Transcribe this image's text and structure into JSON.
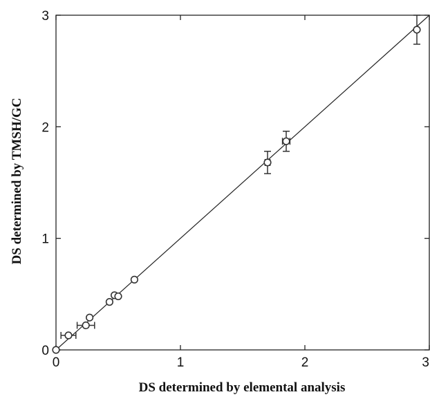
{
  "chart_data": {
    "type": "scatter",
    "title": "",
    "xlabel": "DS determined by elemental analysis",
    "ylabel": "DS determined by TMSH/GC",
    "xlim": [
      0,
      3
    ],
    "ylim": [
      0,
      3
    ],
    "x_ticks": [
      "0",
      "1",
      "2",
      "3"
    ],
    "y_ticks": [
      "0",
      "1",
      "2",
      "3"
    ],
    "grid": false,
    "legend": "none",
    "reference_line": {
      "from": [
        0,
        0
      ],
      "to": [
        3,
        3
      ]
    },
    "points": [
      {
        "x": 0.0,
        "y": 0.0,
        "xerr": 0,
        "yerr": 0
      },
      {
        "x": 0.1,
        "y": 0.13,
        "xerr": 0.06,
        "yerr": 0
      },
      {
        "x": 0.24,
        "y": 0.22,
        "xerr": 0.07,
        "yerr": 0
      },
      {
        "x": 0.27,
        "y": 0.29,
        "xerr": 0,
        "yerr": 0
      },
      {
        "x": 0.43,
        "y": 0.43,
        "xerr": 0,
        "yerr": 0
      },
      {
        "x": 0.47,
        "y": 0.49,
        "xerr": 0,
        "yerr": 0
      },
      {
        "x": 0.5,
        "y": 0.48,
        "xerr": 0,
        "yerr": 0
      },
      {
        "x": 0.63,
        "y": 0.63,
        "xerr": 0,
        "yerr": 0
      },
      {
        "x": 1.7,
        "y": 1.68,
        "xerr": 0.02,
        "yerr": 0.1
      },
      {
        "x": 1.85,
        "y": 1.87,
        "xerr": 0.03,
        "yerr": 0.09
      },
      {
        "x": 2.9,
        "y": 2.87,
        "xerr": 0,
        "yerr": 0.13
      }
    ]
  }
}
